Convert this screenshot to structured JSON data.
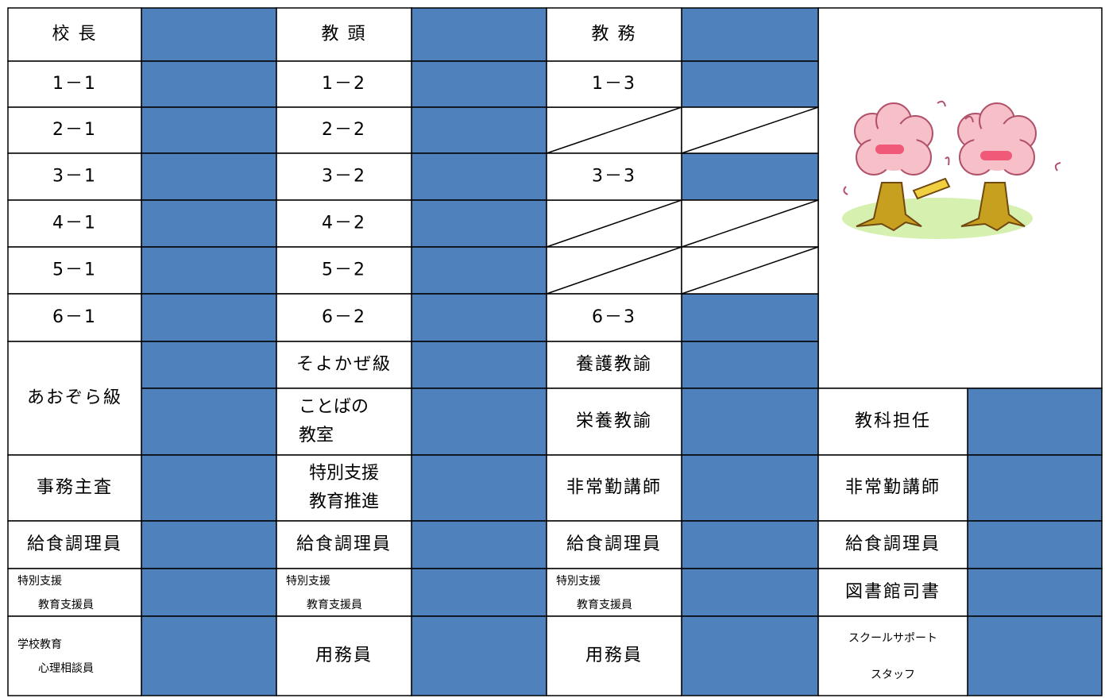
{
  "table": {
    "columns": [
      [
        "校 長",
        "1－1",
        "2－1",
        "3－1",
        "4－1",
        "5－1",
        "6－1",
        "あおぞら級",
        "事務主査",
        "給食調理員",
        [
          "特別支援",
          "教育支援員"
        ],
        [
          "学校教育",
          "心理相談員"
        ]
      ],
      [
        "教 頭",
        "1－2",
        "2－2",
        "3－2",
        "4－2",
        "5－2",
        "6－2",
        "そよかぜ級",
        [
          "ことばの",
          "教室"
        ],
        [
          "特別支援",
          "教育推進"
        ],
        "給食調理員",
        [
          "特別支援",
          "教育支援員"
        ],
        "用務員"
      ],
      [
        "教 務",
        "1－3",
        "3－3",
        "6－3",
        "養護教諭",
        "栄養教諭",
        "非常勤講師",
        "給食調理員",
        [
          "特別支援",
          "教育支援員"
        ],
        "用務員"
      ],
      [
        "教科担任",
        "非常勤講師",
        "給食調理員",
        "図書館司書",
        [
          "スクールサポート",
          "スタッフ"
        ]
      ]
    ]
  }
}
